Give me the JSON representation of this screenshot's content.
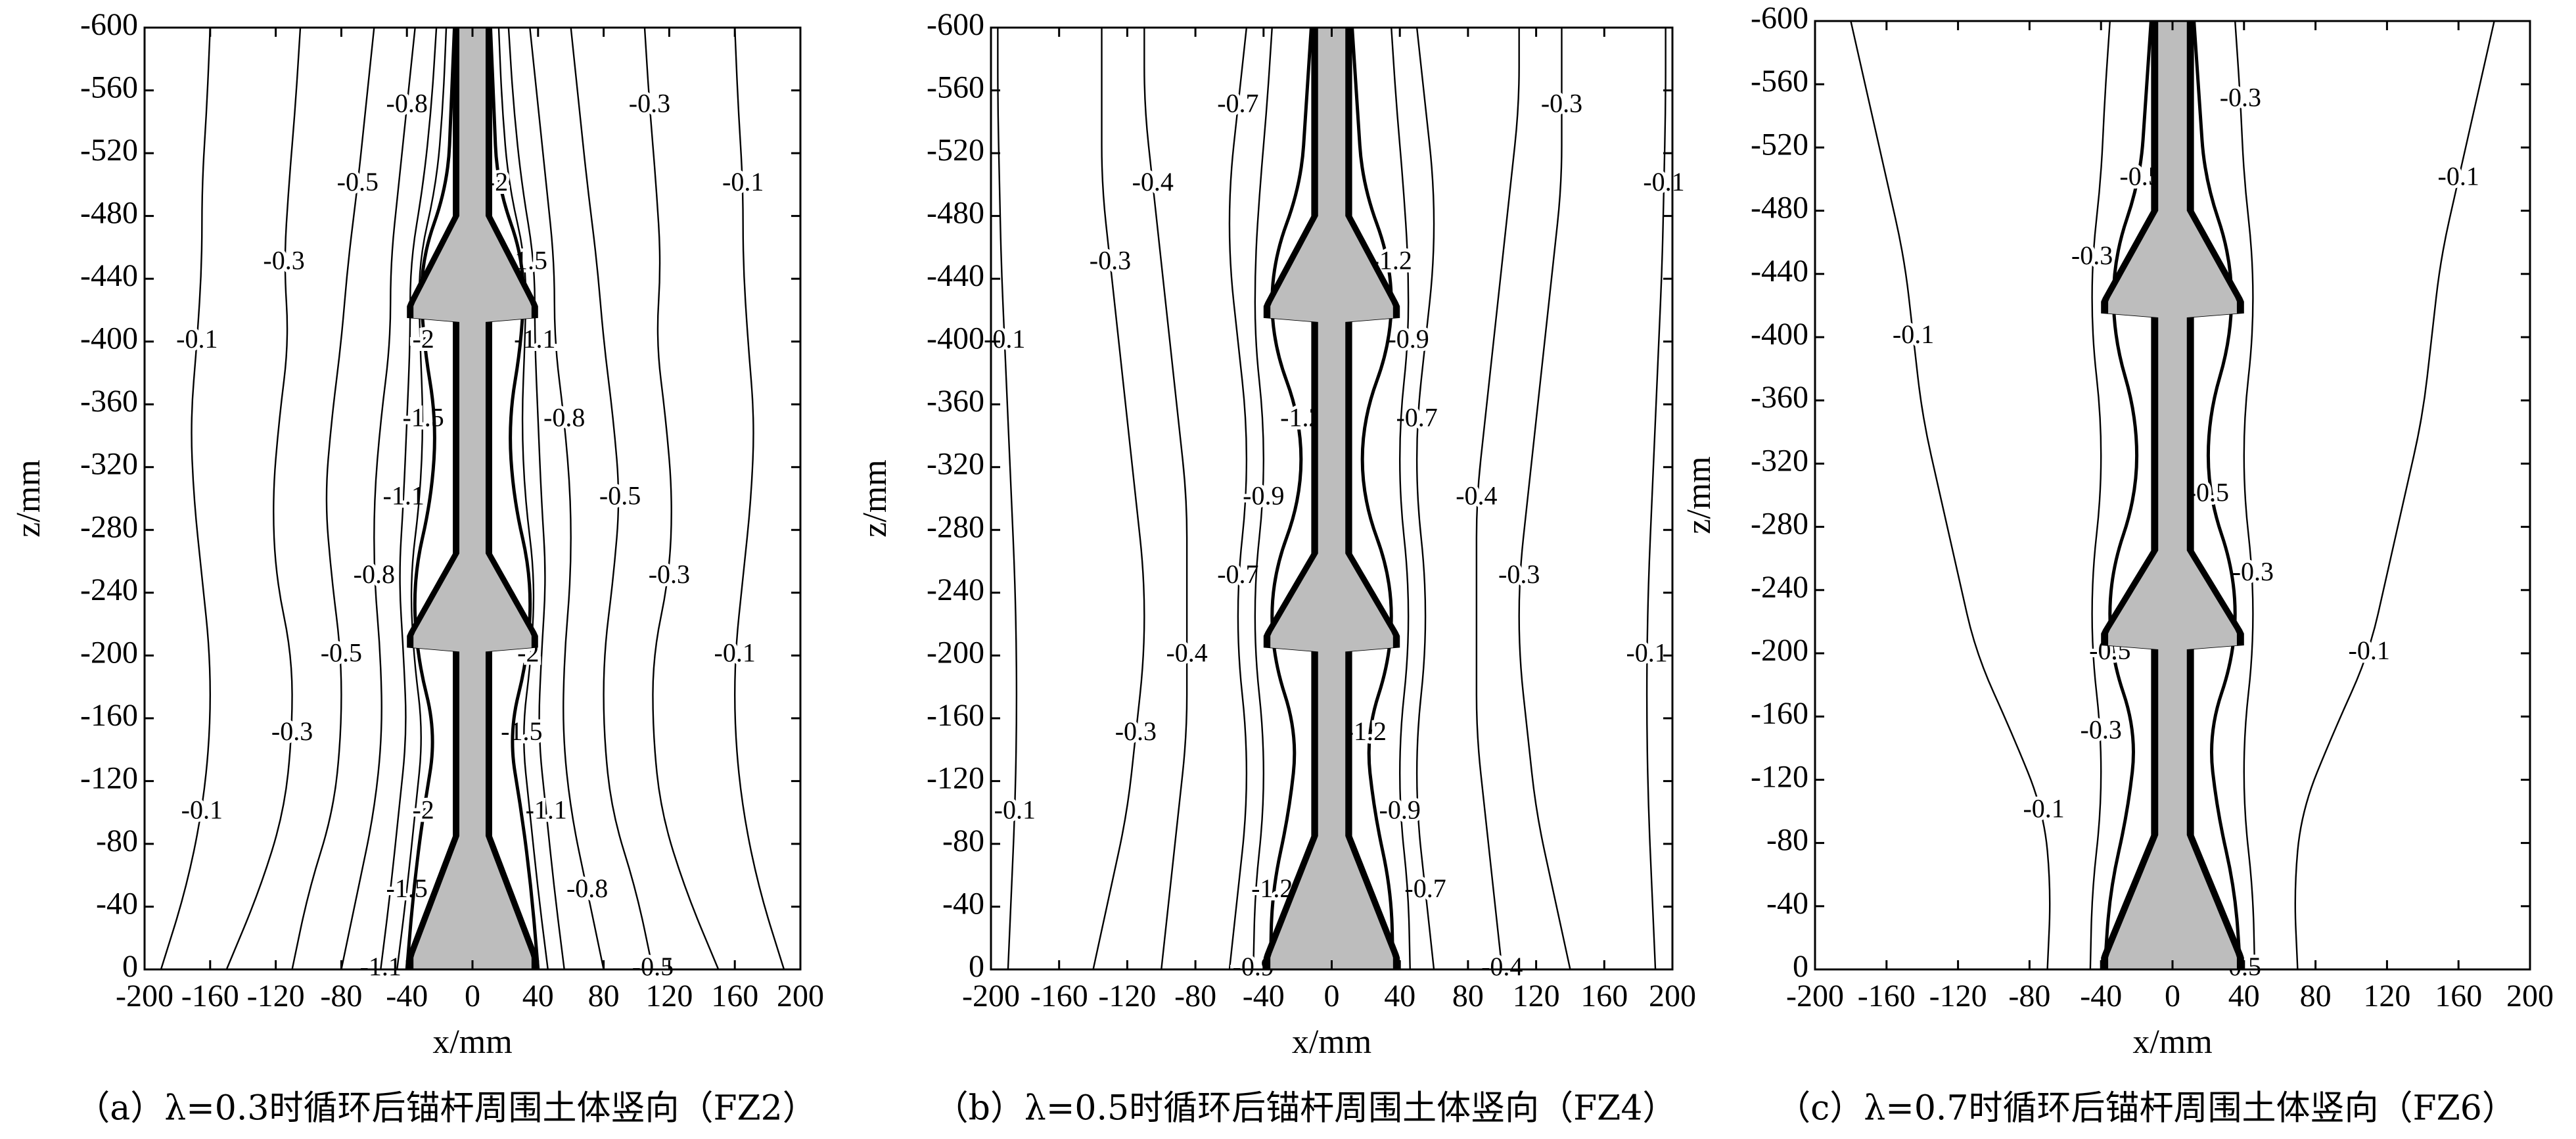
{
  "chart_data": [
    {
      "type": "contour",
      "caption": "（a）λ=0.3时循环后锚杆周围土体竖向（FZ2）",
      "xlabel": "x/mm",
      "ylabel": "z/mm",
      "xlim": [
        -200,
        200
      ],
      "xticks": [
        -200,
        -160,
        -120,
        -80,
        -40,
        0,
        40,
        80,
        120,
        160,
        200
      ],
      "ylim": [
        0,
        -600
      ],
      "yticks": [
        0,
        -40,
        -80,
        -120,
        -160,
        -200,
        -240,
        -280,
        -320,
        -360,
        -400,
        -440,
        -480,
        -520,
        -560,
        -600
      ],
      "z": [
        0,
        -50,
        -100,
        -150,
        -200,
        -250,
        -300,
        -350,
        -400,
        -450,
        -500,
        -550,
        -600
      ],
      "contours": [
        {
          "level": -0.1,
          "x": [
            190,
            175,
            165,
            160,
            160,
            165,
            170,
            172,
            168,
            165,
            165,
            162,
            160
          ]
        },
        {
          "level": -0.3,
          "x": [
            150,
            130,
            115,
            110,
            110,
            120,
            122,
            118,
            112,
            115,
            112,
            108,
            105
          ]
        },
        {
          "level": -0.5,
          "x": [
            110,
            100,
            85,
            80,
            80,
            86,
            90,
            86,
            80,
            76,
            70,
            65,
            60
          ]
        },
        {
          "level": -0.8,
          "x": [
            80,
            70,
            60,
            55,
            56,
            60,
            60,
            56,
            50,
            50,
            45,
            40,
            35
          ]
        },
        {
          "level": -1.1,
          "x": [
            56,
            50,
            45,
            40,
            42,
            45,
            42,
            40,
            38,
            38,
            30,
            25,
            22
          ]
        },
        {
          "level": -1.5,
          "x": [
            46,
            40,
            35,
            30,
            36,
            38,
            32,
            30,
            32,
            33,
            22,
            18,
            16
          ]
        },
        {
          "level": -2,
          "x": [
            40,
            36,
            30,
            22,
            34,
            36,
            25,
            22,
            30,
            32,
            15,
            13,
            11
          ]
        }
      ]
    },
    {
      "type": "contour",
      "caption": "（b）λ=0.5时循环后锚杆周围土体竖向（FZ4）",
      "xlabel": "x/mm",
      "ylabel": "z/mm",
      "xlim": [
        -200,
        200
      ],
      "xticks": [
        -200,
        -160,
        -120,
        -80,
        -40,
        0,
        40,
        80,
        120,
        160,
        200
      ],
      "ylim": [
        0,
        -600
      ],
      "yticks": [
        0,
        -40,
        -80,
        -120,
        -160,
        -200,
        -240,
        -280,
        -320,
        -360,
        -400,
        -440,
        -480,
        -520,
        -560,
        -600
      ],
      "z": [
        0,
        -50,
        -100,
        -150,
        -200,
        -250,
        -300,
        -350,
        -400,
        -450,
        -500,
        -550,
        -600
      ],
      "contours": [
        {
          "level": -0.1,
          "x": [
            190,
            188,
            186,
            185,
            185,
            186,
            188,
            190,
            192,
            194,
            195,
            196,
            196
          ]
        },
        {
          "level": -0.3,
          "x": [
            140,
            130,
            120,
            115,
            110,
            110,
            115,
            120,
            125,
            130,
            135,
            135,
            135
          ]
        },
        {
          "level": -0.4,
          "x": [
            100,
            95,
            90,
            85,
            85,
            85,
            85,
            90,
            95,
            100,
            105,
            110,
            110
          ]
        },
        {
          "level": -0.7,
          "x": [
            60,
            55,
            50,
            50,
            55,
            55,
            50,
            50,
            55,
            60,
            60,
            55,
            50
          ]
        },
        {
          "level": -0.9,
          "x": [
            46,
            45,
            40,
            40,
            45,
            45,
            40,
            40,
            45,
            45,
            42,
            38,
            35
          ]
        },
        {
          "level": -1.2,
          "x": [
            36,
            35,
            25,
            20,
            35,
            35,
            18,
            18,
            35,
            35,
            18,
            15,
            12
          ]
        }
      ]
    },
    {
      "type": "contour",
      "caption": "（c）λ=0.7时循环后锚杆周围土体竖向（FZ6）",
      "xlabel": "x/mm",
      "ylabel": "z/mm",
      "xlim": [
        -200,
        200
      ],
      "xticks": [
        -200,
        -160,
        -120,
        -80,
        -40,
        0,
        40,
        80,
        120,
        160,
        200
      ],
      "ylim": [
        0,
        -600
      ],
      "yticks": [
        0,
        -40,
        -80,
        -120,
        -160,
        -200,
        -240,
        -280,
        -320,
        -360,
        -400,
        -440,
        -480,
        -520,
        -560,
        -600
      ],
      "z": [
        0,
        -50,
        -100,
        -150,
        -200,
        -250,
        -300,
        -350,
        -400,
        -450,
        -500,
        -550,
        -600
      ],
      "contours": [
        {
          "level": -0.1,
          "x": [
            70,
            68,
            72,
            90,
            110,
            120,
            130,
            140,
            145,
            150,
            160,
            170,
            180
          ]
        },
        {
          "level": -0.3,
          "x": [
            46,
            45,
            40,
            40,
            45,
            45,
            40,
            40,
            45,
            45,
            40,
            38,
            35
          ]
        },
        {
          "level": -0.5,
          "x": [
            38,
            35,
            25,
            20,
            35,
            35,
            20,
            20,
            33,
            33,
            18,
            15,
            12
          ]
        }
      ]
    }
  ]
}
